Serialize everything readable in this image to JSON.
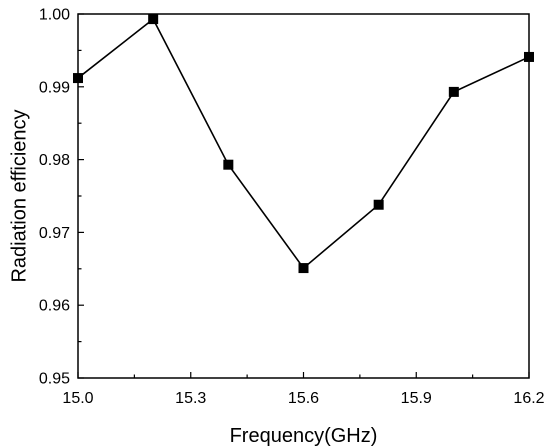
{
  "chart_data": {
    "type": "line",
    "title": "",
    "xlabel": "Frequency(GHz)",
    "ylabel": "Radiation efficiency",
    "xlim": [
      15.0,
      16.2
    ],
    "ylim": [
      0.95,
      1.0
    ],
    "xticks": [
      "15.0",
      "15.3",
      "15.6",
      "15.9",
      "16.2"
    ],
    "yticks": [
      "0.95",
      "0.96",
      "0.97",
      "0.98",
      "0.99",
      "1.00"
    ],
    "grid": false,
    "marker": "square",
    "series": [
      {
        "x": [
          15.0,
          15.2,
          15.4,
          15.6,
          15.8,
          16.0,
          16.2
        ],
        "y": [
          0.9912,
          0.9993,
          0.9793,
          0.9651,
          0.9738,
          0.9893,
          0.9941
        ]
      }
    ]
  }
}
